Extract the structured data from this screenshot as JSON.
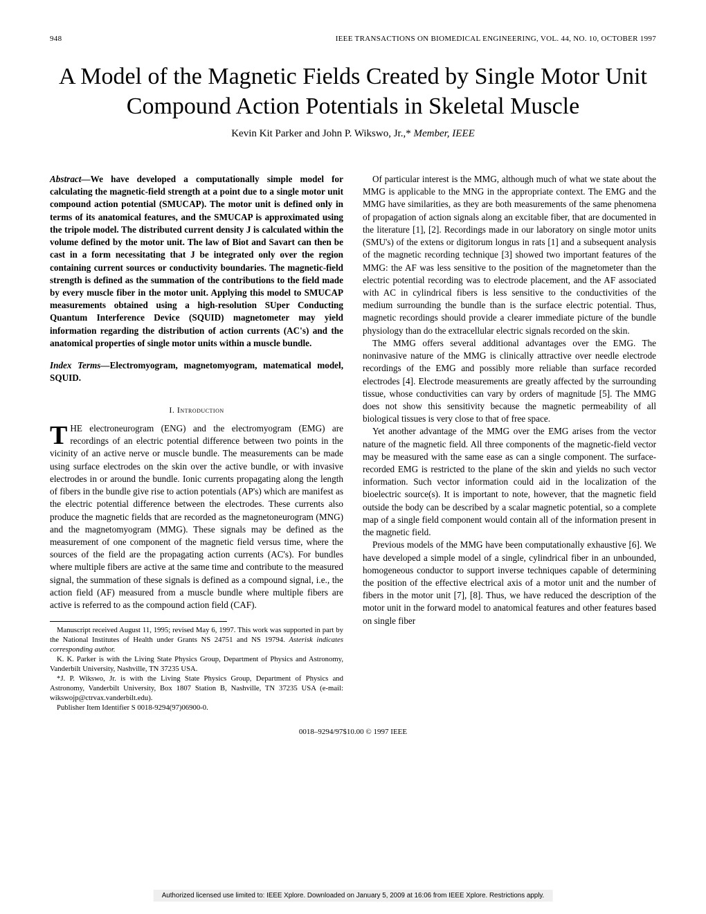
{
  "header": {
    "page": "948",
    "journal": "IEEE TRANSACTIONS ON BIOMEDICAL ENGINEERING, VOL. 44, NO. 10, OCTOBER 1997"
  },
  "title": "A Model of the Magnetic Fields Created by Single Motor Unit Compound Action Potentials in Skeletal Muscle",
  "authors_plain": "Kevin Kit Parker and John P. Wikswo, Jr.,*",
  "authors_role": "Member, IEEE",
  "abstract_label": "Abstract—",
  "abstract_text": "We have developed a computationally simple model for calculating the magnetic-field strength at a point due to a single motor unit compound action potential (SMUCAP). The motor unit is defined only in terms of its anatomical features, and the SMUCAP is approximated using the tripole model. The distributed current density J is calculated within the volume defined by the motor unit. The law of Biot and Savart can then be cast in a form necessitating that J be integrated only over the region containing current sources or conductivity boundaries. The magnetic-field strength is defined as the summation of the contributions to the field made by every muscle fiber in the motor unit. Applying this model to SMUCAP measurements obtained using a high-resolution SUper Conducting Quantum Interference Device (SQUID) magnetometer may yield information regarding the distribution of action currents (AC's) and the anatomical properties of single motor units within a muscle bundle.",
  "index_label": "Index Terms—",
  "index_text": "Electromyogram, magnetomyogram, matematical model, SQUID.",
  "section1": "I.  Introduction",
  "intro_first_letter": "T",
  "intro_first": "HE electroneurogram (ENG) and the electromyogram (EMG) are recordings of an electric potential difference between two points in the vicinity of an active nerve or muscle bundle. The measurements can be made using surface electrodes on the skin over the active bundle, or with invasive electrodes in or around the bundle. Ionic currents propagating along the length of fibers in the bundle give rise to action potentials (AP's) which are manifest as the electric potential difference between the electrodes. These currents also produce the magnetic fields that are recorded as the magnetoneurogram (MNG) and the magnetomyogram (MMG). These signals may be defined as the measurement of one component of the magnetic field versus time, where the sources of the field are the propagating action currents (AC's). For bundles where multiple fibers are active at the same time and contribute to the measured signal, the summation of these signals is defined as a compound signal, i.e., the action field (AF) measured from a muscle bundle where multiple fibers are active is referred to as the compound action field (CAF).",
  "footnotes": {
    "f1a": "Manuscript received August 11, 1995; revised May 6, 1997. This work was supported in part by the National Institutes of Health under Grants NS 24751 and NS 19794. ",
    "f1b": "Asterisk indicates corresponding author.",
    "f2": "K. K. Parker is with the Living State Physics Group, Department of Physics and Astronomy, Vanderbilt University, Nashville, TN 37235 USA.",
    "f3": "*J. P. Wikswo, Jr. is with the Living State Physics Group, Department of Physics and Astronomy, Vanderbilt University, Box 1807 Station B, Nashville, TN 37235 USA (e-mail: wikswojp@ctrvax.vanderbilt.edu).",
    "f4": "Publisher Item Identifier S 0018-9294(97)06900-0."
  },
  "right": {
    "p1": "Of particular interest is the MMG, although much of what we state about the MMG is applicable to the MNG in the appropriate context. The EMG and the MMG have similarities, as they are both measurements of the same phenomena of propagation of action signals along an excitable fiber, that are documented in the literature [1], [2]. Recordings made in our laboratory on single motor units (SMU's) of the extens or digitorum longus in rats [1] and a subsequent analysis of the magnetic recording technique [3] showed two important features of the MMG: the AF was less sensitive to the position of the magnetometer than the electric potential recording was to electrode placement, and the AF associated with AC in cylindrical fibers is less sensitive to the conductivities of the medium surrounding the bundle than is the surface electric potential. Thus, magnetic recordings should provide a clearer immediate picture of the bundle physiology than do the extracellular electric signals recorded on the skin.",
    "p2": "The MMG offers several additional advantages over the EMG. The noninvasive nature of the MMG is clinically attractive over needle electrode recordings of the EMG and possibly more reliable than surface recorded electrodes [4]. Electrode measurements are greatly affected by the surrounding tissue, whose conductivities can vary by orders of magnitude [5]. The MMG does not show this sensitivity because the magnetic permeability of all biological tissues is very close to that of free space.",
    "p3": "Yet another advantage of the MMG over the EMG arises from the vector nature of the magnetic field. All three components of the magnetic-field vector may be measured with the same ease as can a single component. The surface-recorded EMG is restricted to the plane of the skin and yields no such vector information. Such vector information could aid in the localization of the bioelectric source(s). It is important to note, however, that the magnetic field outside the body can be described by a scalar magnetic potential, so a complete map of a single field component would contain all of the information present in the magnetic field.",
    "p4": "Previous models of the MMG have been computationally exhaustive [6]. We have developed a simple model of a single, cylindrical fiber in an unbounded, homogeneous conductor to support inverse techniques capable of determining the position of the effective electrical axis of a motor unit and the number of fibers in the motor unit [7], [8]. Thus, we have reduced the description of the motor unit in the forward model to anatomical features and other features based on single fiber"
  },
  "bottom": "0018–9294/97$10.00 © 1997 IEEE",
  "license": "Authorized licensed use limited to: IEEE Xplore. Downloaded on January 5, 2009 at 16:06 from IEEE Xplore. Restrictions apply."
}
